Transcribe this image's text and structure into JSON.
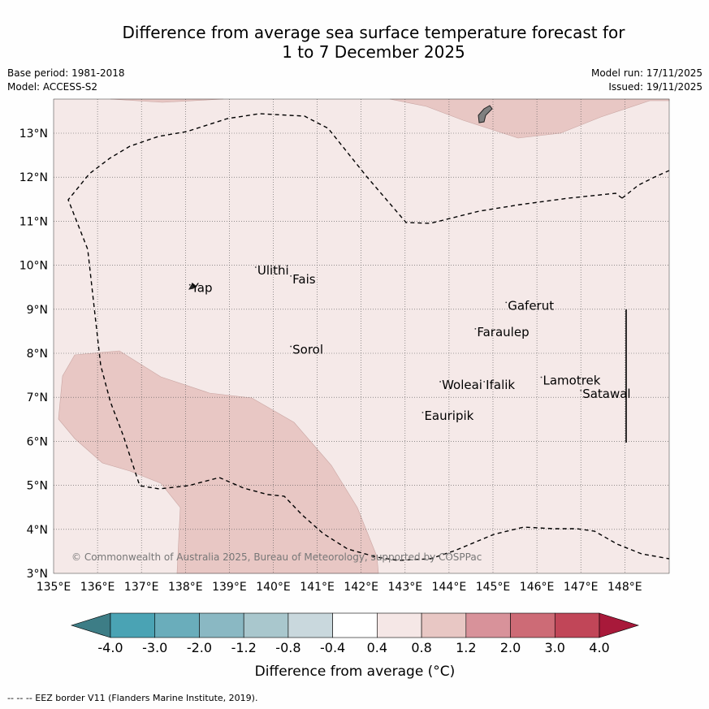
{
  "title": {
    "line1": "Difference from average sea surface temperature forecast for",
    "line2": "1 to 7 December 2025"
  },
  "meta": {
    "base_period": "Base period: 1981-2018",
    "model": "Model: ACCESS-S2",
    "model_run": "Model run: 17/11/2025",
    "issued": "Issued: 19/11/2025"
  },
  "map": {
    "lon_range": [
      135,
      149
    ],
    "lat_range": [
      3,
      13.8
    ],
    "lon_ticks": [
      "135°E",
      "136°E",
      "137°E",
      "138°E",
      "139°E",
      "140°E",
      "141°E",
      "142°E",
      "143°E",
      "144°E",
      "145°E",
      "146°E",
      "147°E",
      "148°E"
    ],
    "lat_ticks": [
      "3°N",
      "4°N",
      "5°N",
      "6°N",
      "7°N",
      "8°N",
      "9°N",
      "10°N",
      "11°N",
      "12°N",
      "13°N"
    ],
    "places": [
      {
        "name": "Ulithi",
        "lon": 139.6,
        "lat": 9.9
      },
      {
        "name": "Fais",
        "lon": 140.4,
        "lat": 9.7
      },
      {
        "name": "Yap",
        "lon": 138.1,
        "lat": 9.5
      },
      {
        "name": "Gaferut",
        "lon": 145.3,
        "lat": 9.1
      },
      {
        "name": "Faraulep",
        "lon": 144.6,
        "lat": 8.5
      },
      {
        "name": "Sorol",
        "lon": 140.4,
        "lat": 8.1
      },
      {
        "name": "Lamotrek",
        "lon": 146.1,
        "lat": 7.4
      },
      {
        "name": "Woleai",
        "lon": 143.8,
        "lat": 7.3
      },
      {
        "name": "Ifalik",
        "lon": 144.8,
        "lat": 7.3
      },
      {
        "name": "Satawal",
        "lon": 147.0,
        "lat": 7.1
      },
      {
        "name": "Eauripik",
        "lon": 143.4,
        "lat": 6.6
      }
    ],
    "copyright": "© Commonwealth of Australia 2025, Bureau of Meteorology, supported by COSPPac"
  },
  "colorbar": {
    "labels": [
      "-4.0",
      "-3.0",
      "-2.0",
      "-1.2",
      "-0.8",
      "-0.4",
      "0.4",
      "0.8",
      "1.2",
      "2.0",
      "3.0",
      "4.0"
    ],
    "colors": [
      "#4aa3b4",
      "#6aadbb",
      "#8ab8c3",
      "#a9c7cd",
      "#c9d8dd",
      "#ffffff",
      "#f5e7e6",
      "#e8c7c4",
      "#d8929a",
      "#cd6b76",
      "#c14658"
    ],
    "low_extend_color": "#3d7d86",
    "high_extend_color": "#a8193a",
    "label": "Difference from average (°C)"
  },
  "footer": "--  --  -- EEZ border V11 (Flanders Marine Institute, 2019)."
}
